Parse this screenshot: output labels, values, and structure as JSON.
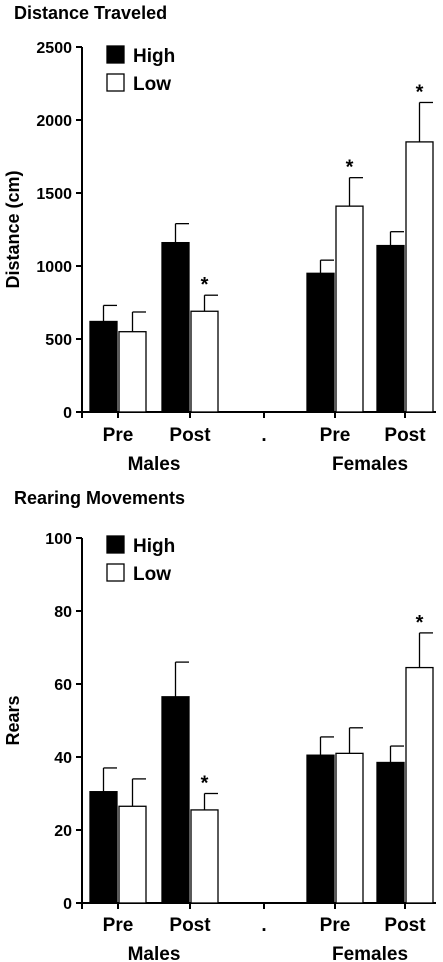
{
  "chart_data": [
    {
      "type": "bar",
      "title": "Distance Traveled",
      "ylabel": "Distance (cm)",
      "ylim": [
        0,
        2500
      ],
      "yticks": [
        "0",
        "500",
        "1000",
        "1500",
        "2000",
        "2500"
      ],
      "categories": [
        "Pre",
        "Post",
        ".",
        "Pre",
        "Post"
      ],
      "groups": [
        "Males",
        "Females"
      ],
      "series": [
        {
          "name": "High",
          "color": "#000000",
          "values": [
            620,
            1160,
            null,
            950,
            1140
          ],
          "errors": [
            110,
            130,
            null,
            90,
            95
          ]
        },
        {
          "name": "Low",
          "color": "#ffffff",
          "values": [
            550,
            690,
            null,
            1410,
            1850
          ],
          "errors": [
            135,
            110,
            null,
            195,
            270
          ]
        }
      ],
      "significance": [
        {
          "series": "Low",
          "category_index": 1,
          "mark": "*"
        },
        {
          "series": "Low",
          "category_index": 3,
          "mark": "*"
        },
        {
          "series": "Low",
          "category_index": 4,
          "mark": "*"
        }
      ],
      "legend_position": "top-left"
    },
    {
      "type": "bar",
      "title": "Rearing Movements",
      "ylabel": "Rears",
      "ylim": [
        0,
        100
      ],
      "yticks": [
        "0",
        "20",
        "40",
        "60",
        "80",
        "100"
      ],
      "categories": [
        "Pre",
        "Post",
        ".",
        "Pre",
        "Post"
      ],
      "groups": [
        "Males",
        "Females"
      ],
      "series": [
        {
          "name": "High",
          "color": "#000000",
          "values": [
            30.5,
            56.5,
            null,
            40.5,
            38.5
          ],
          "errors": [
            6.5,
            9.5,
            null,
            5,
            4.5
          ]
        },
        {
          "name": "Low",
          "color": "#ffffff",
          "values": [
            26.5,
            25.5,
            null,
            41,
            64.5
          ],
          "errors": [
            7.5,
            4.5,
            null,
            7,
            9.5
          ]
        }
      ],
      "significance": [
        {
          "series": "Low",
          "category_index": 1,
          "mark": "*"
        },
        {
          "series": "Low",
          "category_index": 4,
          "mark": "*"
        }
      ],
      "legend_position": "top-left"
    }
  ]
}
